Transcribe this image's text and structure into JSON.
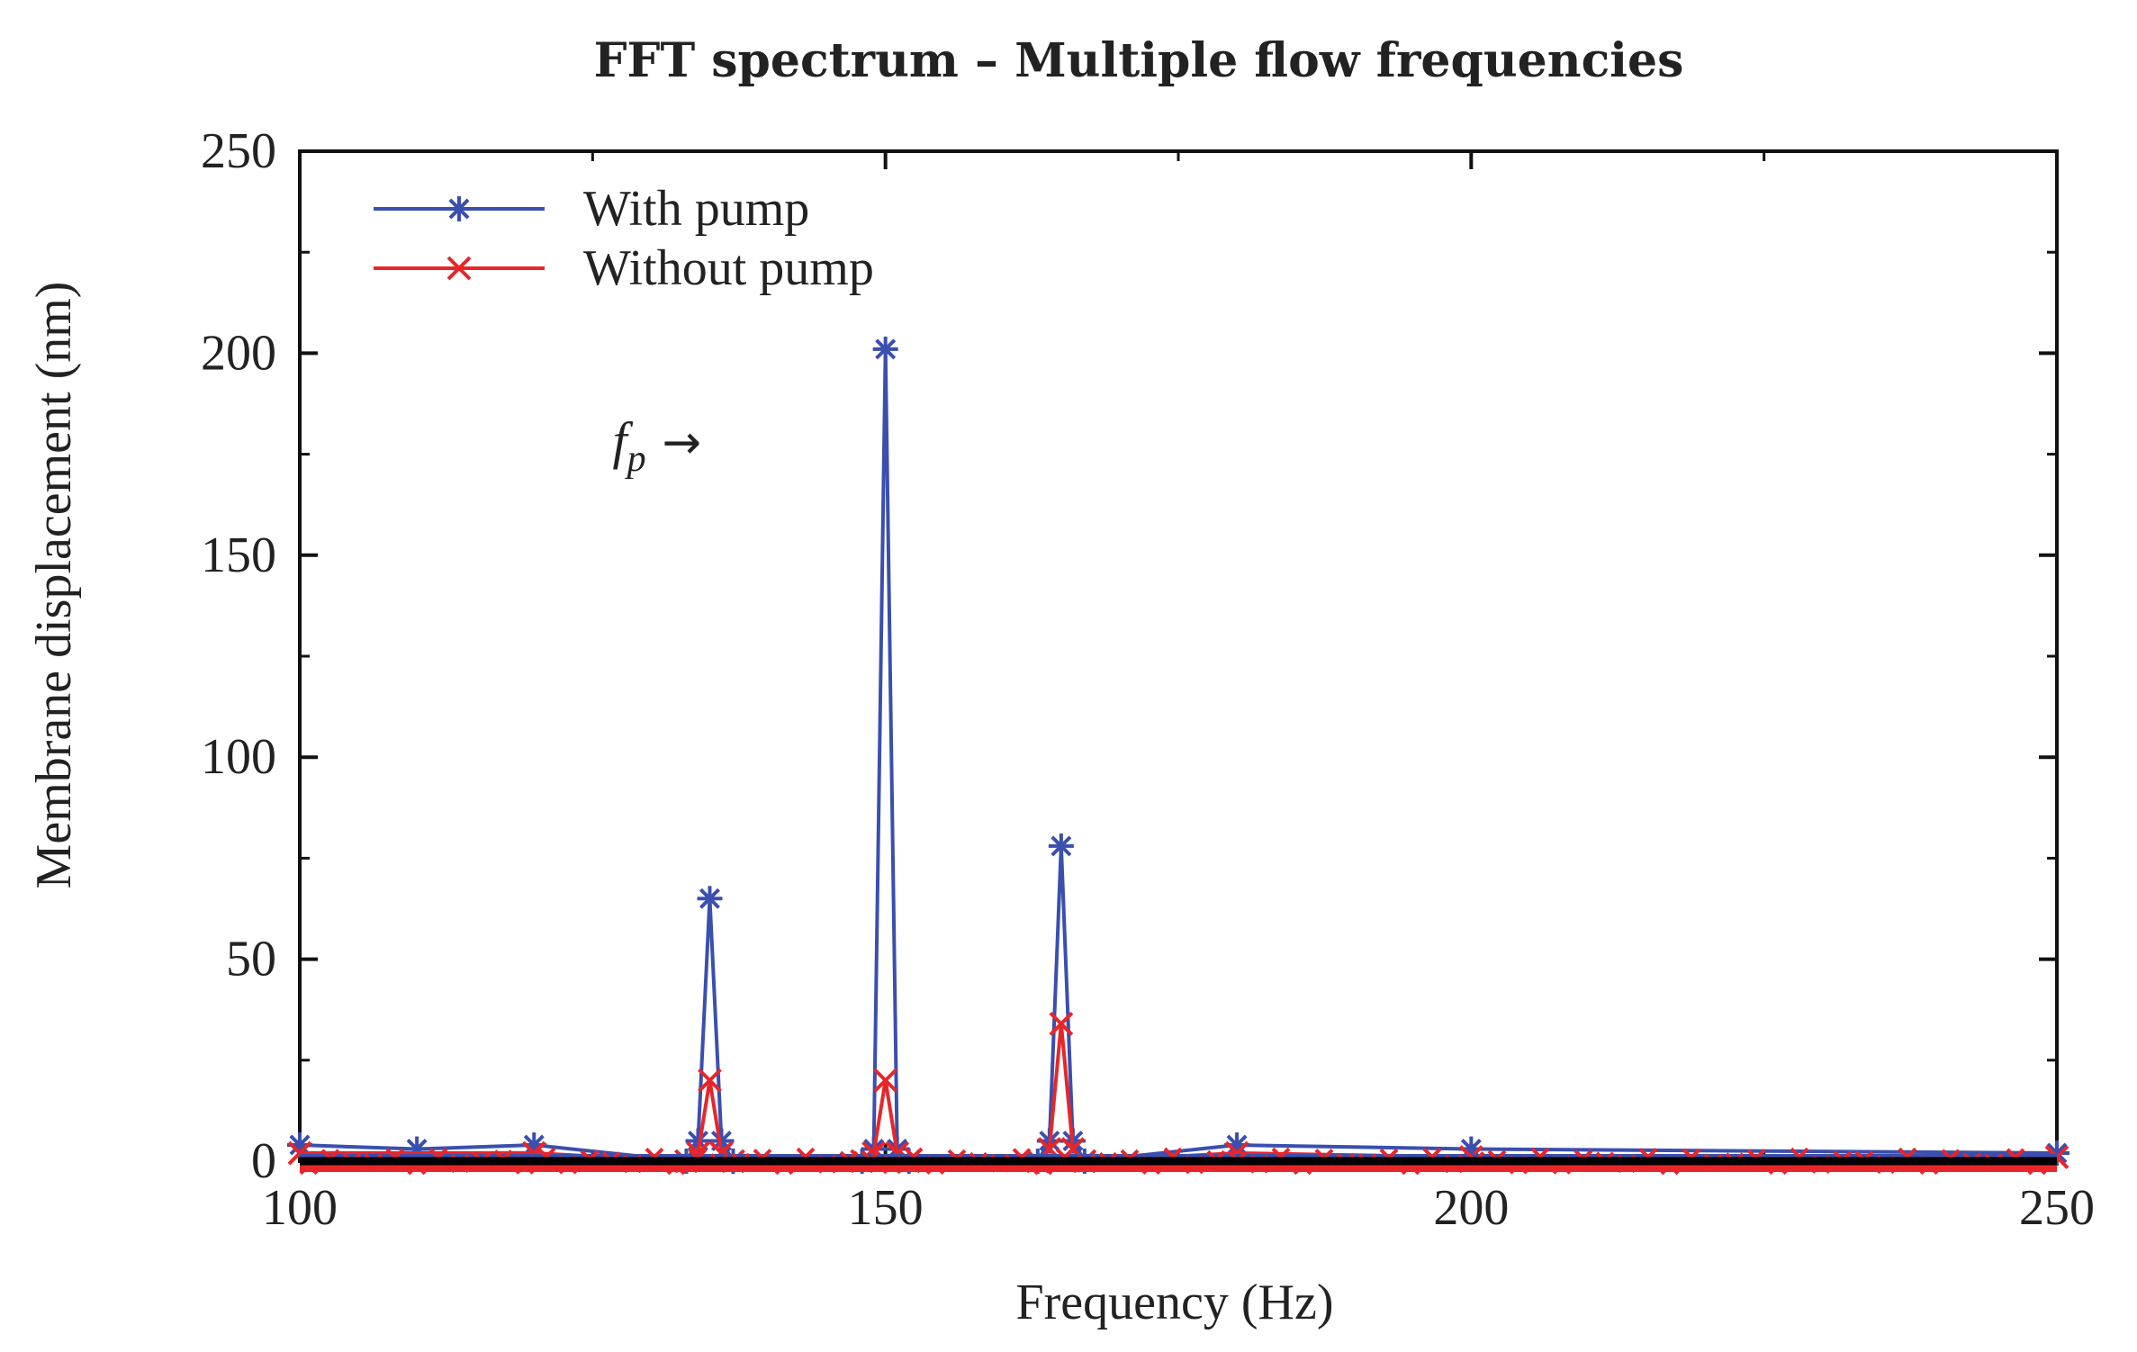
{
  "chart_data": {
    "type": "line",
    "title": "FFT spectrum – Multiple flow frequencies",
    "xlabel": "Frequency (Hz)",
    "ylabel": "Membrane displacement (nm)",
    "xlim": [
      100,
      250
    ],
    "ylim": [
      0,
      250
    ],
    "x_ticks": [
      100,
      150,
      200,
      250
    ],
    "y_ticks": [
      0,
      50,
      100,
      150,
      200,
      250
    ],
    "x_tick_labels": [
      "100",
      "150",
      "200",
      "250"
    ],
    "y_tick_labels": [
      "0",
      "50",
      "100",
      "150",
      "200",
      "250"
    ],
    "legend_position": "top-left",
    "annotation": {
      "text": "f",
      "subscript": "p",
      "arrow": "→",
      "x": 134,
      "y": 178
    },
    "series": [
      {
        "name": "With pump",
        "color": "#3a4fae",
        "marker": "asterisk",
        "points": [
          [
            100,
            4
          ],
          [
            110,
            3
          ],
          [
            120,
            4
          ],
          [
            133,
            0
          ],
          [
            134,
            5
          ],
          [
            135,
            65
          ],
          [
            136,
            5
          ],
          [
            137,
            0
          ],
          [
            148,
            0
          ],
          [
            149,
            3
          ],
          [
            150,
            201
          ],
          [
            151,
            3
          ],
          [
            152,
            0
          ],
          [
            163,
            0
          ],
          [
            164,
            5
          ],
          [
            165,
            78
          ],
          [
            166,
            5
          ],
          [
            167,
            0
          ],
          [
            180,
            4
          ],
          [
            200,
            3
          ],
          [
            250,
            2
          ]
        ]
      },
      {
        "name": "Without pump",
        "color": "#e8262a",
        "marker": "x",
        "points": [
          [
            100,
            2
          ],
          [
            120,
            2
          ],
          [
            133,
            0
          ],
          [
            134,
            2
          ],
          [
            135,
            20
          ],
          [
            136,
            2
          ],
          [
            137,
            0
          ],
          [
            148,
            0
          ],
          [
            149,
            2
          ],
          [
            150,
            20
          ],
          [
            151,
            2
          ],
          [
            152,
            0
          ],
          [
            163,
            0
          ],
          [
            164,
            3
          ],
          [
            165,
            34
          ],
          [
            166,
            3
          ],
          [
            167,
            0
          ],
          [
            180,
            2
          ],
          [
            200,
            1
          ],
          [
            250,
            1
          ]
        ]
      }
    ]
  }
}
